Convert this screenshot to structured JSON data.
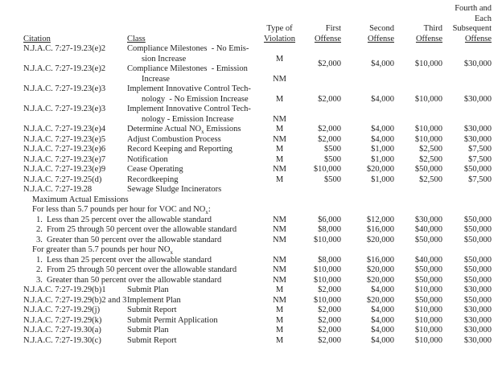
{
  "page": {
    "background": "#ffffff",
    "text_color": "#1f1f1f"
  },
  "table": {
    "header": {
      "citation": "Citation",
      "class": "Class",
      "type_of_violation": [
        "Type of",
        "Violation"
      ],
      "first": [
        "First",
        "Offense"
      ],
      "second": [
        "Second",
        "Offense"
      ],
      "third": [
        "Third",
        "Offense"
      ],
      "fourth": [
        "Fourth and",
        "Each",
        "Subsequent",
        "Offense"
      ]
    },
    "rows": [
      {
        "kind": "entry",
        "citation": "N.J.A.C. 7:27-19.23(e)2",
        "class_lines": [
          "Compliance Milestones  - No Emis-",
          "sion Increase"
        ],
        "violation": "M",
        "amounts": [
          "$2,000",
          "$4,000",
          "$10,000",
          "$30,000"
        ]
      },
      {
        "kind": "entry",
        "citation": "N.J.A.C. 7:27-19.23(e)2",
        "class_lines": [
          "Compliance Milestones  - Emission",
          "Increase"
        ],
        "violation": "NM",
        "amounts": [
          "",
          "",
          "",
          ""
        ]
      },
      {
        "kind": "entry",
        "citation": "N.J.A.C. 7:27-19.23(e)3",
        "class_lines": [
          "Implement Innovative Control Tech-",
          "nology  - No Emission Increase"
        ],
        "violation": "M",
        "amounts": [
          "$2,000",
          "$4,000",
          "$10,000",
          "$30,000"
        ]
      },
      {
        "kind": "entry",
        "citation": "N.J.A.C. 7:27-19.23(e)3",
        "class_lines": [
          "Implement Innovative Control Tech-",
          "nology - Emission Increase"
        ],
        "violation": "NM",
        "amounts": [
          "",
          "",
          "",
          ""
        ]
      },
      {
        "kind": "entry",
        "citation": "N.J.A.C. 7:27-19.23(e)4",
        "class_lines": [
          "Determine Actual NO~x~ Emissions"
        ],
        "violation": "M",
        "amounts": [
          "$2,000",
          "$4,000",
          "$10,000",
          "$30,000"
        ]
      },
      {
        "kind": "entry",
        "citation": "N.J.A.C. 7:27-19.23(e)5",
        "class_lines": [
          "Adjust Combustion Process"
        ],
        "violation": "NM",
        "amounts": [
          "$2,000",
          "$4,000",
          "$10,000",
          "$30,000"
        ]
      },
      {
        "kind": "entry",
        "citation": "N.J.A.C. 7:27-19.23(e)6",
        "class_lines": [
          "Record Keeping and Reporting"
        ],
        "violation": "M",
        "amounts": [
          "$500",
          "$1,000",
          "$2,500",
          "$7,500"
        ]
      },
      {
        "kind": "entry",
        "citation": "N.J.A.C. 7:27-19.23(e)7",
        "class_lines": [
          "Notification"
        ],
        "violation": "M",
        "amounts": [
          "$500",
          "$1,000",
          "$2,500",
          "$7,500"
        ]
      },
      {
        "kind": "entry",
        "citation": "N.J.A.C. 7:27-19.23(e)9",
        "class_lines": [
          "Cease Operating"
        ],
        "violation": "NM",
        "amounts": [
          "$10,000",
          "$20,000",
          "$50,000",
          "$50,000"
        ]
      },
      {
        "kind": "entry",
        "citation": "N.J.A.C. 7:27-19.25(d)",
        "class_lines": [
          "Recordkeeping"
        ],
        "violation": "M",
        "amounts": [
          "$500",
          "$1,000",
          "$2,500",
          "$7,500"
        ]
      },
      {
        "kind": "entry",
        "citation": "N.J.A.C. 7:27-19.28",
        "class_lines": [
          "Sewage Sludge Incinerators"
        ],
        "violation": "",
        "amounts": [
          "",
          "",
          "",
          ""
        ]
      },
      {
        "kind": "section",
        "text": "Maximum Actual Emissions"
      },
      {
        "kind": "section",
        "text": "For less than 5.7 pounds per hour for VOC and NO~x~:"
      },
      {
        "kind": "item",
        "number": "1.",
        "text": "Less than 25 percent over the allowable standard",
        "violation": "NM",
        "amounts": [
          "$6,000",
          "$12,000",
          "$30,000",
          "$50,000"
        ]
      },
      {
        "kind": "item",
        "number": "2.",
        "text": "From 25 through 50 percent over the allowable standard",
        "violation": "NM",
        "amounts": [
          "$8,000",
          "$16,000",
          "$40,000",
          "$50,000"
        ]
      },
      {
        "kind": "item",
        "number": "3.",
        "text": "Greater than 50 percent over the allowable standard",
        "violation": "NM",
        "amounts": [
          "$10,000",
          "$20,000",
          "$50,000",
          "$50,000"
        ]
      },
      {
        "kind": "section",
        "text": "For greater than 5.7 pounds per hour NO~x~"
      },
      {
        "kind": "item",
        "number": "1.",
        "text": "Less than 25 percent over the allowable standard",
        "violation": "NM",
        "amounts": [
          "$8,000",
          "$16,000",
          "$40,000",
          "$50,000"
        ]
      },
      {
        "kind": "item",
        "number": "2.",
        "text": "From 25 through 50 percent over the allowable standard",
        "violation": "NM",
        "amounts": [
          "$10,000",
          "$20,000",
          "$50,000",
          "$50,000"
        ]
      },
      {
        "kind": "item",
        "number": "3.",
        "text": "Greater than 50 percent over the allowable standard",
        "violation": "NM",
        "amounts": [
          "$10,000",
          "$20,000",
          "$50,000",
          "$50,000"
        ]
      },
      {
        "kind": "entry",
        "citation": "N.J.A.C. 7:27-19.29(b)1",
        "class_lines": [
          "Submit Plan"
        ],
        "violation": "M",
        "amounts": [
          "$2,000",
          "$4,000",
          "$10,000",
          "$30,000"
        ]
      },
      {
        "kind": "entry",
        "citation": "N.J.A.C. 7:27-19.29(b)2 and 3",
        "class_lines": [
          "Implement Plan"
        ],
        "violation": "NM",
        "amounts": [
          "$10,000",
          "$20,000",
          "$50,000",
          "$50,000"
        ]
      },
      {
        "kind": "entry",
        "citation": "N.J.A.C. 7:27-19.29(j)",
        "class_lines": [
          "Submit Report"
        ],
        "violation": "M",
        "amounts": [
          "$2,000",
          "$4,000",
          "$10,000",
          "$30,000"
        ]
      },
      {
        "kind": "entry",
        "citation": "N.J.A.C. 7:27-19.29(k)",
        "class_lines": [
          "Submit Permit Application"
        ],
        "violation": "M",
        "amounts": [
          "$2,000",
          "$4,000",
          "$10,000",
          "$30,000"
        ]
      },
      {
        "kind": "entry",
        "citation": "N.J.A.C. 7:27-19.30(a)",
        "class_lines": [
          "Submit Plan"
        ],
        "violation": "M",
        "amounts": [
          "$2,000",
          "$4,000",
          "$10,000",
          "$30,000"
        ]
      },
      {
        "kind": "entry",
        "citation": "N.J.A.C. 7:27-19.30(c)",
        "class_lines": [
          "Submit Report"
        ],
        "violation": "M",
        "amounts": [
          "$2,000",
          "$4,000",
          "$10,000",
          "$30,000"
        ]
      }
    ]
  }
}
